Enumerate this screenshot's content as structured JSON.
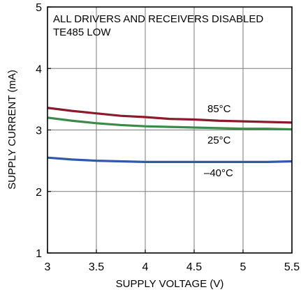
{
  "chart_data": {
    "type": "line",
    "title": "",
    "xlabel": "SUPPLY VOLTAGE (V)",
    "ylabel": "SUPPLY CURRENT (mA)",
    "xlim": [
      3,
      5.5
    ],
    "ylim": [
      1,
      5
    ],
    "xticks": [
      "3",
      "3.5",
      "4",
      "4.5",
      "5",
      "5.5"
    ],
    "yticks": [
      "1",
      "2",
      "3",
      "4",
      "5"
    ],
    "grid": true,
    "annotations": [
      "ALL DRIVERS AND RECEIVERS DISABLED",
      "TE485 LOW"
    ],
    "series": [
      {
        "name": "85°C",
        "color": "#8b1a2b",
        "x": [
          3.0,
          3.25,
          3.5,
          3.75,
          4.0,
          4.25,
          4.5,
          4.75,
          5.0,
          5.25,
          5.5
        ],
        "y": [
          3.36,
          3.31,
          3.27,
          3.23,
          3.21,
          3.18,
          3.17,
          3.15,
          3.14,
          3.13,
          3.12
        ]
      },
      {
        "name": "25°C",
        "color": "#3a8a4a",
        "x": [
          3.0,
          3.25,
          3.5,
          3.75,
          4.0,
          4.25,
          4.5,
          4.75,
          5.0,
          5.25,
          5.5
        ],
        "y": [
          3.2,
          3.15,
          3.11,
          3.08,
          3.06,
          3.05,
          3.04,
          3.03,
          3.02,
          3.02,
          3.01
        ]
      },
      {
        "name": "–40°C",
        "color": "#2f5aa8",
        "x": [
          3.0,
          3.25,
          3.5,
          3.75,
          4.0,
          4.25,
          4.5,
          4.75,
          5.0,
          5.25,
          5.5
        ],
        "y": [
          2.55,
          2.52,
          2.5,
          2.49,
          2.48,
          2.48,
          2.48,
          2.48,
          2.48,
          2.48,
          2.49
        ]
      }
    ]
  }
}
